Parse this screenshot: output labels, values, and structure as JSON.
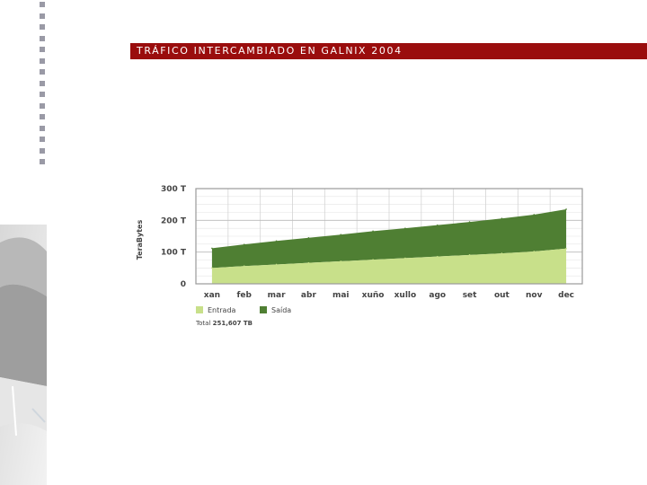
{
  "slide": {
    "title": "TRÁFICO INTERCAMBIADO EN GALNIX 2004"
  },
  "colors": {
    "title_bar": "#9a0d0d",
    "entrada": "#c8e08a",
    "saida": "#4f7f33"
  },
  "chart_data": {
    "type": "area",
    "stacked": true,
    "ylabel": "TeraBytes",
    "xlabel": "",
    "ylim": [
      0,
      300
    ],
    "yticks": [
      {
        "value": 0,
        "label": "0"
      },
      {
        "value": 100,
        "label": "100 T"
      },
      {
        "value": 200,
        "label": "200 T"
      },
      {
        "value": 300,
        "label": "300 T"
      }
    ],
    "categories": [
      "xan",
      "feb",
      "mar",
      "abr",
      "mai",
      "xuño",
      "xullo",
      "ago",
      "set",
      "out",
      "nov",
      "dec"
    ],
    "series": [
      {
        "name": "Entrada",
        "color": "#c8e08a",
        "values": [
          50,
          56,
          61,
          66,
          71,
          76,
          81,
          86,
          91,
          96,
          102,
          111
        ]
      },
      {
        "name": "Saída",
        "color": "#4f7f33",
        "values": [
          62,
          68,
          74,
          79,
          84,
          90,
          94,
          99,
          104,
          110,
          116,
          124
        ]
      }
    ],
    "grid": true,
    "legend_position": "bottom-left",
    "total": {
      "label": "Total",
      "value": "251,607 TB"
    }
  }
}
